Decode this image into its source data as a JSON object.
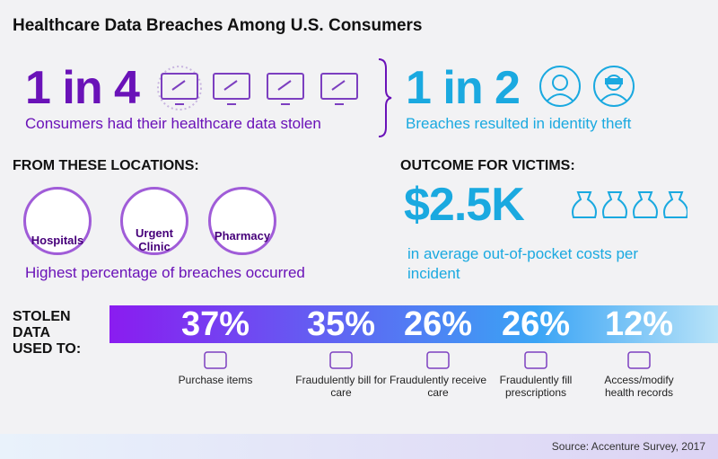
{
  "title": "Healthcare Data Breaches Among U.S. Consumers",
  "stat_left": {
    "headline": "1 in 4",
    "caption": "Consumers had their healthcare data stolen"
  },
  "stat_right": {
    "headline": "1 in 2",
    "caption": "Breaches resulted in identity theft"
  },
  "locations": {
    "heading": "FROM THESE LOCATIONS:",
    "items": [
      "Hospitals",
      "Urgent Clinic",
      "Pharmacy"
    ],
    "caption": "Highest percentage of breaches occurred"
  },
  "outcome": {
    "heading": "OUTCOME FOR VICTIMS:",
    "amount": "$2.5K",
    "caption": "in average out-of-pocket costs per incident"
  },
  "stolen": {
    "heading": "STOLEN DATA USED TO:",
    "items": [
      {
        "percent": "37%",
        "label": "Purchase items"
      },
      {
        "percent": "35%",
        "label": "Fraudulently bill for care"
      },
      {
        "percent": "26%",
        "label": "Fraudulently receive care"
      },
      {
        "percent": "26%",
        "label": "Fraudulently fill prescriptions"
      },
      {
        "percent": "12%",
        "label": "Access/modify health records"
      }
    ]
  },
  "source": "Source: Accenture Survey, 2017"
}
